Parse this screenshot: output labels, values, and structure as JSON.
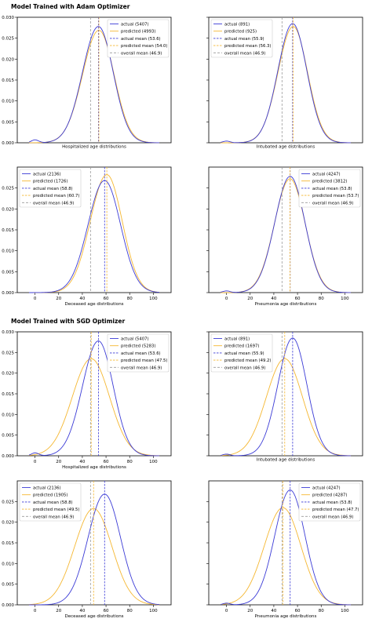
{
  "sections": [
    {
      "title": "Model Trained with Adam Optimizer"
    },
    {
      "title": "Model Trained with SGD Optimizer"
    }
  ],
  "colors": {
    "actual": "#3b3bd6",
    "predicted": "#f5b731",
    "overall": "#9a9a9a"
  },
  "chart_data": [
    {
      "type": "line",
      "section": 0,
      "xlabel": "Hospitalized age distributions",
      "xlim": [
        -15,
        115
      ],
      "ylim": [
        0,
        0.03
      ],
      "xticks": [],
      "yticks": [
        0,
        0.005,
        0.01,
        0.015,
        0.02,
        0.025,
        0.03
      ],
      "ytick_labels": [
        "0.000",
        "0.005",
        "0.010",
        "0.015",
        "0.020",
        "0.025",
        "0.030"
      ],
      "legend_pos": "top-right",
      "series": [
        {
          "name": "actual (5407)",
          "kind": "actual",
          "mean": 53.6,
          "peak": 0.0278,
          "sd_l": 13.5,
          "sd_r": 12.5,
          "bump": 0.0007
        },
        {
          "name": "predicted (4993)",
          "kind": "predicted",
          "mean": 54.0,
          "peak": 0.0269,
          "sd_l": 13.8,
          "sd_r": 12.8,
          "bump": 0
        }
      ],
      "vlines": [
        {
          "name": "actual mean (53.6)",
          "kind": "actual",
          "x": 53.6
        },
        {
          "name": "predicted mean (54.0)",
          "kind": "predicted",
          "x": 54.0
        },
        {
          "name": "overall mean (46.9)",
          "kind": "overall",
          "x": 46.9
        }
      ]
    },
    {
      "type": "line",
      "section": 0,
      "xlabel": "Intubated age distributions",
      "xlim": [
        -15,
        115
      ],
      "ylim": [
        0,
        0.03
      ],
      "xticks": [],
      "yticks": [
        0,
        0.005,
        0.01,
        0.015,
        0.02,
        0.025,
        0.03
      ],
      "ytick_labels": [],
      "legend_pos": "top-left",
      "series": [
        {
          "name": "actual (891)",
          "kind": "actual",
          "mean": 55.9,
          "peak": 0.0285,
          "sd_l": 12.5,
          "sd_r": 12.0,
          "bump": 0.0004
        },
        {
          "name": "predicted (925)",
          "kind": "predicted",
          "mean": 56.3,
          "peak": 0.0278,
          "sd_l": 12.8,
          "sd_r": 12.2,
          "bump": 0
        }
      ],
      "vlines": [
        {
          "name": "actual mean (55.9)",
          "kind": "actual",
          "x": 55.9
        },
        {
          "name": "predicted mean (56.3)",
          "kind": "predicted",
          "x": 56.3
        },
        {
          "name": "overall mean (46.9)",
          "kind": "overall",
          "x": 46.9
        }
      ]
    },
    {
      "type": "line",
      "section": 0,
      "xlabel": "Deceased age distributions",
      "xlim": [
        -15,
        115
      ],
      "ylim": [
        0,
        0.03
      ],
      "xticks": [
        0,
        20,
        40,
        60,
        80,
        100
      ],
      "yticks": [
        0,
        0.005,
        0.01,
        0.015,
        0.02,
        0.025
      ],
      "ytick_labels": [
        "0.000",
        "0.005",
        "0.010",
        "0.015",
        "0.020",
        "0.025"
      ],
      "legend_pos": "top-left",
      "series": [
        {
          "name": "actual (2136)",
          "kind": "actual",
          "mean": 58.8,
          "peak": 0.0268,
          "sd_l": 14.0,
          "sd_r": 13.5,
          "bump": 0
        },
        {
          "name": "predicted (1726)",
          "kind": "predicted",
          "mean": 60.7,
          "peak": 0.0282,
          "sd_l": 14.0,
          "sd_r": 13.0,
          "bump": 0
        }
      ],
      "vlines": [
        {
          "name": "actual mean (58.8)",
          "kind": "actual",
          "x": 58.8
        },
        {
          "name": "predicted mean (60.7)",
          "kind": "predicted",
          "x": 60.7
        },
        {
          "name": "overall mean (46.9)",
          "kind": "overall",
          "x": 46.9
        }
      ]
    },
    {
      "type": "line",
      "section": 0,
      "xlabel": "Pneumonia age distributions",
      "xlim": [
        -15,
        115
      ],
      "ylim": [
        0,
        0.03
      ],
      "xticks": [
        0,
        20,
        40,
        60,
        80,
        100
      ],
      "yticks": [
        0,
        0.005,
        0.01,
        0.015,
        0.02,
        0.025
      ],
      "ytick_labels": [],
      "legend_pos": "top-right",
      "series": [
        {
          "name": "actual (4247)",
          "kind": "actual",
          "mean": 53.8,
          "peak": 0.0278,
          "sd_l": 13.0,
          "sd_r": 12.5,
          "bump": 0.0004
        },
        {
          "name": "predicted (3812)",
          "kind": "predicted",
          "mean": 53.7,
          "peak": 0.0272,
          "sd_l": 13.2,
          "sd_r": 12.8,
          "bump": 0
        }
      ],
      "vlines": [
        {
          "name": "actual mean (53.8)",
          "kind": "actual",
          "x": 53.8
        },
        {
          "name": "predicted mean (53.7)",
          "kind": "predicted",
          "x": 53.7
        },
        {
          "name": "overall mean (46.9)",
          "kind": "overall",
          "x": 46.9
        }
      ]
    },
    {
      "type": "line",
      "section": 1,
      "xlabel": "Hospitalized age distributions",
      "xlim": [
        -15,
        115
      ],
      "ylim": [
        0,
        0.03
      ],
      "xticks": [
        0,
        20,
        40,
        60,
        80,
        100
      ],
      "yticks": [
        0,
        0.005,
        0.01,
        0.015,
        0.02,
        0.025,
        0.03
      ],
      "ytick_labels": [
        "0.000",
        "0.005",
        "0.010",
        "0.015",
        "0.020",
        "0.025",
        "0.030"
      ],
      "legend_pos": "top-right",
      "series": [
        {
          "name": "actual (5407)",
          "kind": "actual",
          "mean": 53.6,
          "peak": 0.0278,
          "sd_l": 13.5,
          "sd_r": 12.5,
          "bump": 0.0007
        },
        {
          "name": "predicted (5283)",
          "kind": "predicted",
          "mean": 47.5,
          "peak": 0.0235,
          "sd_l": 16.0,
          "sd_r": 15.5,
          "bump": 0
        }
      ],
      "vlines": [
        {
          "name": "actual mean (53.6)",
          "kind": "actual",
          "x": 53.6
        },
        {
          "name": "predicted mean (47.5)",
          "kind": "predicted",
          "x": 47.5
        },
        {
          "name": "overall mean (46.9)",
          "kind": "overall",
          "x": 46.9
        }
      ]
    },
    {
      "type": "line",
      "section": 1,
      "xlabel": "Intubated age distributions",
      "xlim": [
        -15,
        115
      ],
      "ylim": [
        0,
        0.03
      ],
      "xticks": [],
      "yticks": [
        0,
        0.005,
        0.01,
        0.015,
        0.02,
        0.025,
        0.03
      ],
      "ytick_labels": [],
      "legend_pos": "top-left",
      "series": [
        {
          "name": "actual (891)",
          "kind": "actual",
          "mean": 55.9,
          "peak": 0.0285,
          "sd_l": 12.5,
          "sd_r": 12.0,
          "bump": 0.0004
        },
        {
          "name": "predicted (1697)",
          "kind": "predicted",
          "mean": 49.2,
          "peak": 0.0235,
          "sd_l": 15.5,
          "sd_r": 15.0,
          "bump": 0
        }
      ],
      "vlines": [
        {
          "name": "actual mean (55.9)",
          "kind": "actual",
          "x": 55.9
        },
        {
          "name": "predicted mean (49.2)",
          "kind": "predicted",
          "x": 49.2
        },
        {
          "name": "overall mean (46.9)",
          "kind": "overall",
          "x": 46.9
        }
      ]
    },
    {
      "type": "line",
      "section": 1,
      "xlabel": "Deceased age distributions",
      "xlim": [
        -15,
        115
      ],
      "ylim": [
        0,
        0.03
      ],
      "xticks": [
        0,
        20,
        40,
        60,
        80,
        100
      ],
      "yticks": [
        0,
        0.005,
        0.01,
        0.015,
        0.02,
        0.025
      ],
      "ytick_labels": [
        "0.000",
        "0.005",
        "0.010",
        "0.015",
        "0.020",
        "0.025"
      ],
      "legend_pos": "top-left",
      "series": [
        {
          "name": "actual (2136)",
          "kind": "actual",
          "mean": 58.8,
          "peak": 0.0268,
          "sd_l": 14.0,
          "sd_r": 13.5,
          "bump": 0
        },
        {
          "name": "predicted (1905)",
          "kind": "predicted",
          "mean": 49.5,
          "peak": 0.0233,
          "sd_l": 16.0,
          "sd_r": 15.5,
          "bump": 0
        }
      ],
      "vlines": [
        {
          "name": "actual mean (58.8)",
          "kind": "actual",
          "x": 58.8
        },
        {
          "name": "predicted mean (49.5)",
          "kind": "predicted",
          "x": 49.5
        },
        {
          "name": "overall mean (46.9)",
          "kind": "overall",
          "x": 46.9
        }
      ]
    },
    {
      "type": "line",
      "section": 1,
      "xlabel": "Pneumonia age distributions",
      "xlim": [
        -15,
        115
      ],
      "ylim": [
        0,
        0.03
      ],
      "xticks": [
        0,
        20,
        40,
        60,
        80,
        100
      ],
      "yticks": [
        0,
        0.005,
        0.01,
        0.015,
        0.02,
        0.025
      ],
      "ytick_labels": [],
      "legend_pos": "top-right",
      "series": [
        {
          "name": "actual (4247)",
          "kind": "actual",
          "mean": 53.8,
          "peak": 0.0278,
          "sd_l": 13.0,
          "sd_r": 12.5,
          "bump": 0.0004
        },
        {
          "name": "predicted (4287)",
          "kind": "predicted",
          "mean": 47.7,
          "peak": 0.0235,
          "sd_l": 15.8,
          "sd_r": 15.2,
          "bump": 0
        }
      ],
      "vlines": [
        {
          "name": "actual mean (53.8)",
          "kind": "actual",
          "x": 53.8
        },
        {
          "name": "predicted mean (47.7)",
          "kind": "predicted",
          "x": 47.7
        },
        {
          "name": "overall mean (46.9)",
          "kind": "overall",
          "x": 46.9
        }
      ]
    }
  ]
}
